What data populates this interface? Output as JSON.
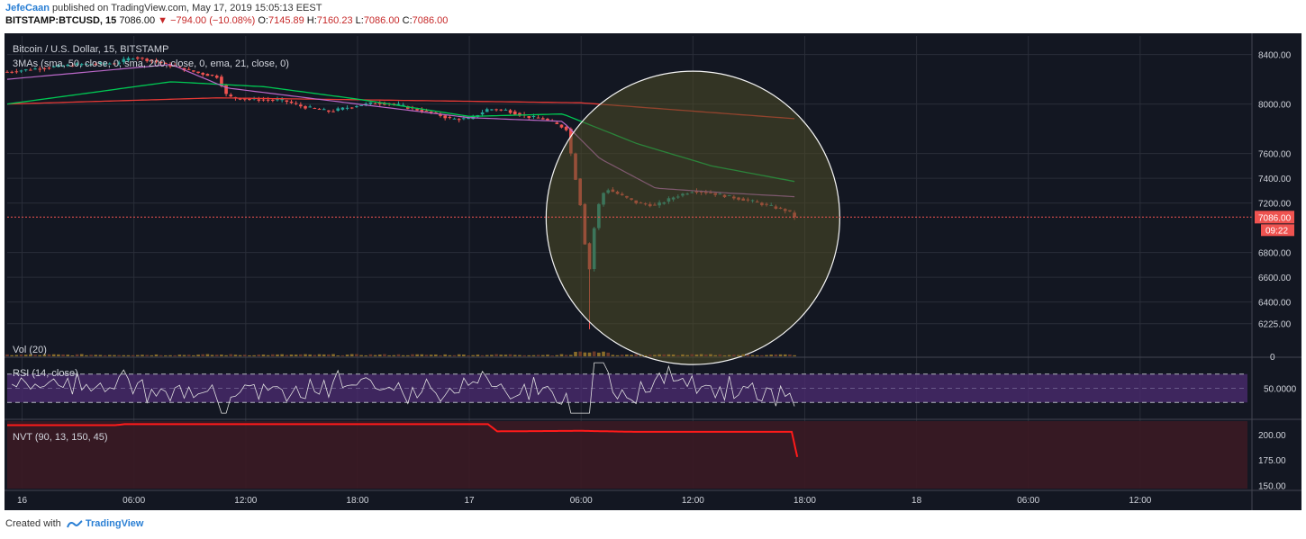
{
  "header": {
    "author": "JefeCaan",
    "published": "published on TradingView.com, May 17, 2019 15:05:13 EEST",
    "symbol": "BITSTAMP:BTCUSD, 15",
    "last": "7086.00",
    "change": "−794.00 (−10.08%)",
    "o_label": "O:",
    "o": "7145.89",
    "h_label": "H:",
    "h": "7160.23",
    "l_label": "L:",
    "l": "7086.00",
    "c_label": "C:",
    "c": "7086.00"
  },
  "footer": {
    "created_with": "Created with",
    "brand": "TradingView"
  },
  "colors": {
    "background": "#131722",
    "up": "#26a69a",
    "down": "#ef5350",
    "sma50": "#00c853",
    "sma200": "#e53935",
    "ema21": "#ba68c8",
    "rsi_band": "#4a2a6e",
    "nvt_band": "#3b1a24",
    "nvt_line": "#ff1a1a",
    "highlight_fill": "#4e4c27"
  },
  "chart_data": [
    {
      "type": "candlestick",
      "title": "Bitcoin / U.S. Dollar, 15, BITSTAMP",
      "indicator": "3MAs (sma, 50, close, 0, sma, 200, close, 0, ema, 21, close, 0)",
      "ylim": [
        6150,
        8550
      ],
      "y_ticks": [
        "8400.00",
        "8000.00",
        "7600.00",
        "7400.00",
        "7200.00",
        "6800.00",
        "6600.00",
        "6400.00",
        "6225.00"
      ],
      "last_price_label": "7086.00",
      "countdown_label": "09:22",
      "x_ticks": [
        "16",
        "06:00",
        "12:00",
        "18:00",
        "17",
        "06:00",
        "12:00",
        "18:00",
        "18",
        "06:00",
        "12:00"
      ],
      "x_tick_hours": [
        0,
        6,
        12,
        18,
        24,
        30,
        36,
        42,
        48,
        54,
        60
      ],
      "x_range_hours": [
        -0.8,
        66
      ],
      "price_keypoints": [
        [
          -0.8,
          8260
        ],
        [
          1,
          8290
        ],
        [
          3,
          8320
        ],
        [
          5,
          8330
        ],
        [
          6,
          8380
        ],
        [
          7,
          8350
        ],
        [
          8,
          8310
        ],
        [
          9.5,
          8250
        ],
        [
          10.5,
          8220
        ],
        [
          11,
          8060
        ],
        [
          12,
          8040
        ],
        [
          14,
          8030
        ],
        [
          15,
          7980
        ],
        [
          16.5,
          7940
        ],
        [
          18,
          7990
        ],
        [
          19,
          8010
        ],
        [
          20,
          8000
        ],
        [
          21,
          7960
        ],
        [
          22,
          7930
        ],
        [
          23,
          7880
        ],
        [
          24,
          7880
        ],
        [
          25,
          7960
        ],
        [
          26,
          7950
        ],
        [
          27,
          7900
        ],
        [
          28,
          7880
        ],
        [
          29.2,
          7800
        ],
        [
          29.6,
          7480
        ],
        [
          30,
          7150
        ],
        [
          30.4,
          6600
        ],
        [
          30.8,
          7130
        ],
        [
          31.3,
          7320
        ],
        [
          32,
          7270
        ],
        [
          33,
          7200
        ],
        [
          34,
          7180
        ],
        [
          35,
          7250
        ],
        [
          36,
          7300
        ],
        [
          37,
          7280
        ],
        [
          38,
          7250
        ],
        [
          39,
          7220
        ],
        [
          40,
          7180
        ],
        [
          41,
          7140
        ],
        [
          41.6,
          7086
        ]
      ],
      "sma200_keypoints": [
        [
          -0.8,
          8000
        ],
        [
          10.5,
          8050
        ],
        [
          30,
          8010
        ],
        [
          41.6,
          7880
        ]
      ],
      "sma50_keypoints": [
        [
          -0.8,
          8000
        ],
        [
          8,
          8180
        ],
        [
          13,
          8140
        ],
        [
          18,
          8040
        ],
        [
          24,
          7900
        ],
        [
          29,
          7920
        ],
        [
          33,
          7680
        ],
        [
          37,
          7500
        ],
        [
          41.6,
          7370
        ]
      ],
      "ema21_keypoints": [
        [
          -0.8,
          8200
        ],
        [
          8,
          8320
        ],
        [
          11,
          8130
        ],
        [
          18,
          8000
        ],
        [
          24,
          7890
        ],
        [
          29,
          7860
        ],
        [
          31,
          7560
        ],
        [
          34,
          7320
        ],
        [
          38,
          7280
        ],
        [
          41.6,
          7250
        ]
      ],
      "highlight": {
        "shape": "circle",
        "center": [
          36,
          7080
        ],
        "note": ""
      }
    },
    {
      "type": "bar",
      "title": "Vol (20)",
      "y_ticks": [
        "0"
      ]
    },
    {
      "type": "line",
      "title": "RSI (14, close)",
      "y_ticks": [
        "50.0000"
      ],
      "band": [
        30,
        70
      ],
      "ylim": [
        10,
        90
      ]
    },
    {
      "type": "line",
      "title": "NVT (90, 13, 150, 45)",
      "y_ticks": [
        "200.00",
        "175.00",
        "150.00"
      ],
      "ylim": [
        147,
        213
      ],
      "keypoints": [
        [
          -0.8,
          209
        ],
        [
          5,
          209
        ],
        [
          5.5,
          210
        ],
        [
          25,
          210
        ],
        [
          25.5,
          203
        ],
        [
          30,
          203.5
        ],
        [
          33,
          202.5
        ],
        [
          41.3,
          202.5
        ],
        [
          41.6,
          178
        ]
      ]
    }
  ]
}
